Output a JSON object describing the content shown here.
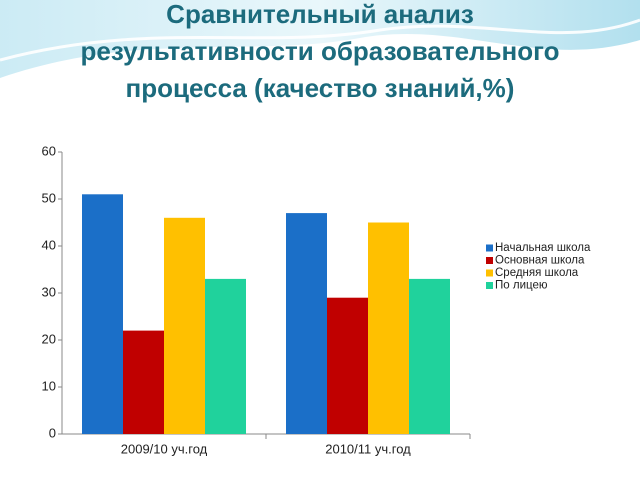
{
  "chart_data": {
    "type": "bar",
    "title": "Сравнительный анализ результативности образовательного процесса (качество знаний,%)",
    "categories": [
      "2009/10 уч.год",
      "2010/11 уч.год"
    ],
    "series": [
      {
        "name": "Начальная школа",
        "color": "#1b6fc8",
        "values": [
          51,
          47
        ]
      },
      {
        "name": "Основная школа",
        "color": "#c00000",
        "values": [
          22,
          29
        ]
      },
      {
        "name": "Средняя школа",
        "color": "#ffc000",
        "values": [
          46,
          45
        ]
      },
      {
        "name": "По лицею",
        "color": "#20d29c",
        "values": [
          33,
          33
        ]
      }
    ],
    "ylim": [
      0,
      60
    ],
    "yticks": [
      0,
      10,
      20,
      30,
      40,
      50,
      60
    ],
    "grid": false,
    "legend": "right"
  }
}
